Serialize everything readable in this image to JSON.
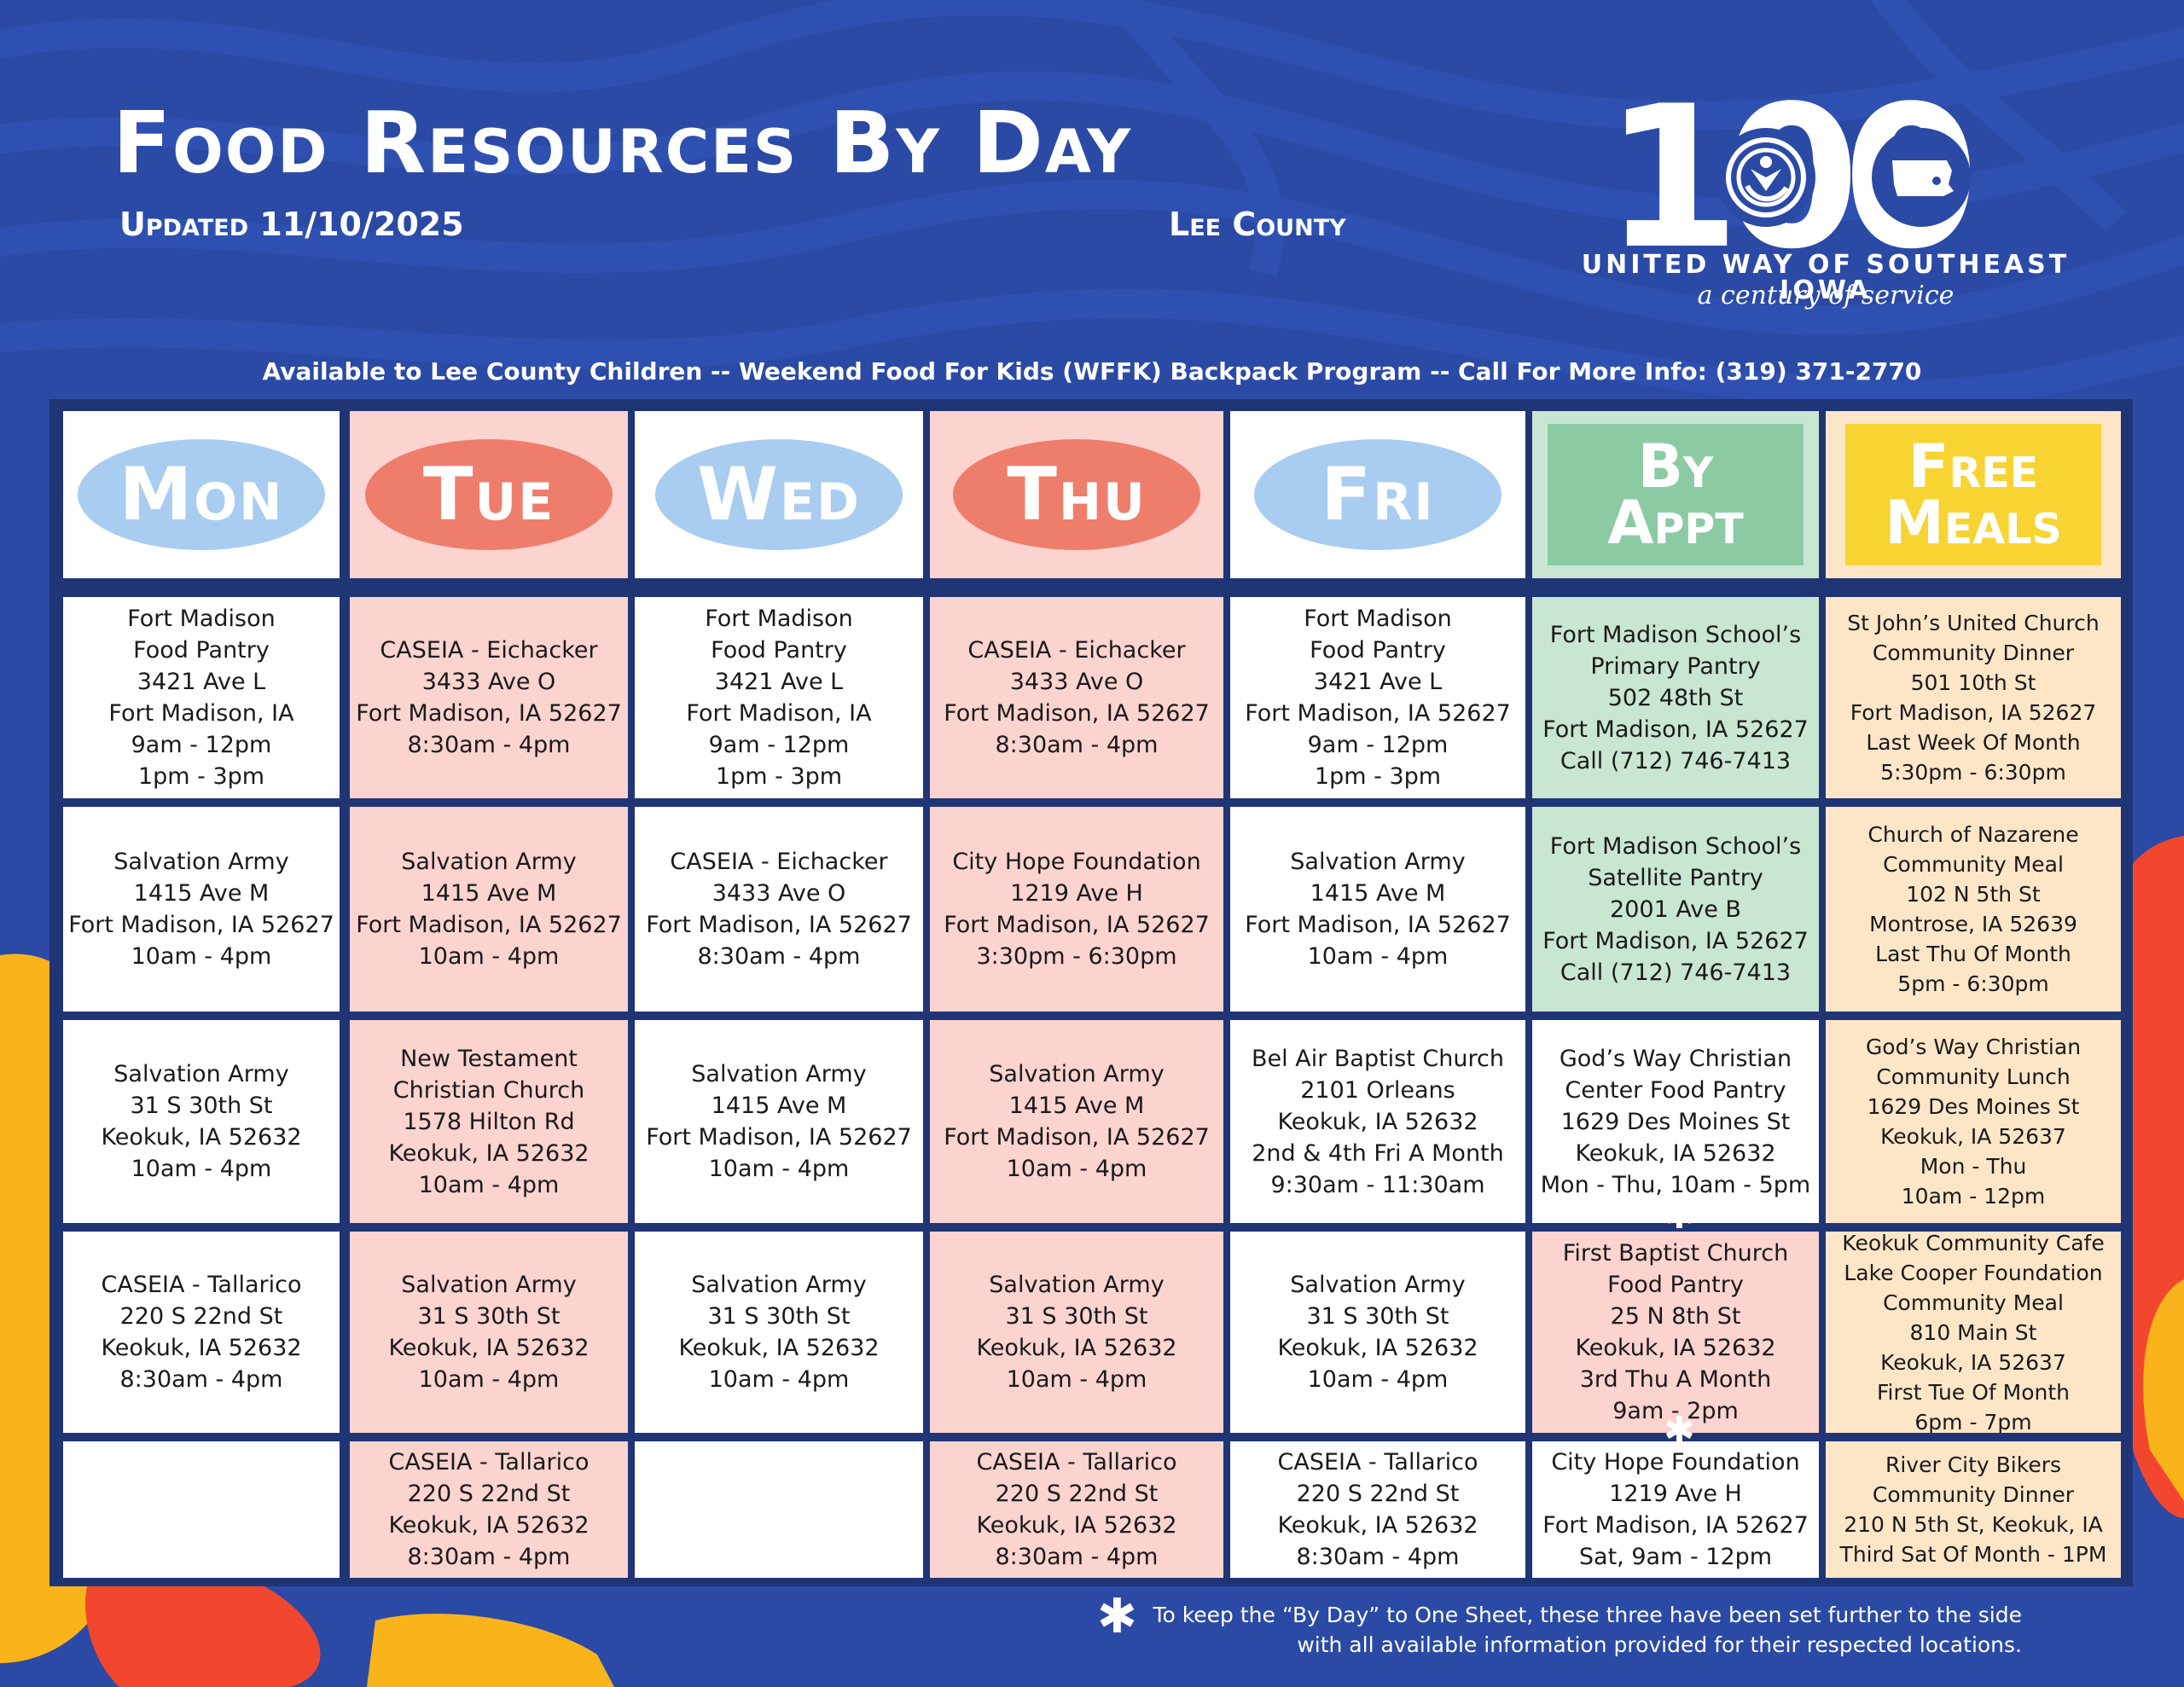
{
  "header": {
    "title": "Food Resources By Day",
    "updated": "Updated 11/10/2025",
    "county": "Lee County"
  },
  "logo": {
    "number": "100",
    "org": "UNITED WAY OF SOUTHEAST IOWA",
    "tagline": "a century of service"
  },
  "banner": "Available to Lee County Children -- Weekend Food For Kids (WFFK) Backpack Program -- Call For More Info: (319) 371-2770",
  "days": [
    {
      "label": "Mon",
      "style": "oval",
      "color": "#a9cdf0"
    },
    {
      "label": "Tue",
      "style": "oval",
      "color": "#ef7d6c"
    },
    {
      "label": "Wed",
      "style": "oval",
      "color": "#a9cdf0"
    },
    {
      "label": "Thu",
      "style": "oval",
      "color": "#ef7d6c"
    },
    {
      "label": "Fri",
      "style": "oval",
      "color": "#a9cdf0"
    },
    {
      "label": "By\nAppt",
      "style": "rect",
      "color": "#8ccaa4"
    },
    {
      "label": "Free\nMeals",
      "style": "rect",
      "color": "#f8d433"
    }
  ],
  "columns": [
    {
      "bg": "#ffffff",
      "cells": [
        [
          "Fort Madison",
          "Food Pantry",
          "3421 Ave L",
          "Fort Madison, IA",
          "9am - 12pm",
          "1pm - 3pm"
        ],
        [
          "Salvation Army",
          "1415 Ave M",
          "Fort Madison, IA 52627",
          "10am - 4pm"
        ],
        [
          "Salvation Army",
          "31 S 30th St",
          "Keokuk, IA 52632",
          "10am - 4pm"
        ],
        [
          "CASEIA - Tallarico",
          "220 S 22nd St",
          "Keokuk, IA 52632",
          "8:30am - 4pm"
        ],
        []
      ]
    },
    {
      "bg": "#fbd3cf",
      "cells": [
        [
          "CASEIA - Eichacker",
          "3433 Ave O",
          "Fort Madison, IA 52627",
          "8:30am - 4pm"
        ],
        [
          "Salvation Army",
          "1415 Ave M",
          "Fort Madison, IA 52627",
          "10am - 4pm"
        ],
        [
          "New Testament",
          "Christian Church",
          "1578 Hilton Rd",
          "Keokuk, IA 52632",
          "10am - 4pm"
        ],
        [
          "Salvation Army",
          "31 S 30th St",
          "Keokuk, IA 52632",
          "10am - 4pm"
        ],
        [
          "CASEIA - Tallarico",
          "220 S 22nd St",
          "Keokuk, IA 52632",
          "8:30am - 4pm"
        ]
      ]
    },
    {
      "bg": "#ffffff",
      "cells": [
        [
          "Fort Madison",
          "Food Pantry",
          "3421 Ave L",
          "Fort Madison, IA",
          "9am - 12pm",
          "1pm - 3pm"
        ],
        [
          "CASEIA - Eichacker",
          "3433 Ave O",
          "Fort Madison, IA 52627",
          "8:30am - 4pm"
        ],
        [
          "Salvation Army",
          "1415 Ave M",
          "Fort Madison, IA 52627",
          "10am - 4pm"
        ],
        [
          "Salvation Army",
          "31 S 30th St",
          "Keokuk, IA 52632",
          "10am - 4pm"
        ],
        []
      ]
    },
    {
      "bg": "#fbd3cf",
      "cells": [
        [
          "CASEIA - Eichacker",
          "3433 Ave O",
          "Fort Madison, IA 52627",
          "8:30am - 4pm"
        ],
        [
          "City Hope Foundation",
          "1219 Ave H",
          "Fort Madison, IA 52627",
          "3:30pm - 6:30pm"
        ],
        [
          "Salvation Army",
          "1415 Ave M",
          "Fort Madison, IA 52627",
          "10am - 4pm"
        ],
        [
          "Salvation Army",
          "31 S 30th St",
          "Keokuk, IA 52632",
          "10am - 4pm"
        ],
        [
          "CASEIA - Tallarico",
          "220 S 22nd St",
          "Keokuk, IA 52632",
          "8:30am - 4pm"
        ]
      ]
    },
    {
      "bg": "#ffffff",
      "cells": [
        [
          "Fort Madison",
          "Food Pantry",
          "3421 Ave L",
          "Fort Madison, IA 52627",
          "9am - 12pm",
          "1pm - 3pm"
        ],
        [
          "Salvation Army",
          "1415 Ave M",
          "Fort Madison, IA 52627",
          "10am - 4pm"
        ],
        [
          "Bel Air Baptist Church",
          "2101 Orleans",
          "Keokuk, IA 52632",
          "2nd & 4th Fri A Month",
          "9:30am - 11:30am"
        ],
        [
          "Salvation Army",
          "31 S 30th St",
          "Keokuk, IA 52632",
          "10am - 4pm"
        ],
        [
          "CASEIA - Tallarico",
          "220 S 22nd St",
          "Keokuk, IA 52632",
          "8:30am - 4pm"
        ]
      ]
    },
    {
      "bg": "#c9e6d3",
      "cells": [
        [
          "Fort Madison School’s",
          "Primary Pantry",
          "502 48th St",
          "Fort Madison, IA 52627",
          "Call (712) 746-7413"
        ],
        [
          "Fort Madison School’s",
          "Satellite Pantry",
          "2001 Ave B",
          "Fort Madison, IA 52627",
          "Call (712) 746-7413"
        ],
        [
          "God’s Way Christian",
          "Center Food Pantry",
          "1629 Des Moines St",
          "Keokuk, IA 52632",
          "Mon - Thu, 10am - 5pm"
        ],
        [
          "First Baptist Church",
          "Food Pantry",
          "25 N 8th St",
          "Keokuk, IA 52632",
          "3rd Thu A Month",
          "9am - 2pm"
        ],
        [
          "City Hope Foundation",
          "1219 Ave H",
          "Fort Madison, IA 52627",
          "Sat, 9am - 12pm"
        ]
      ]
    },
    {
      "bg": "#fde6c8",
      "cells": [
        [
          "St John’s United Church",
          "Community Dinner",
          "501 10th St",
          "Fort Madison, IA 52627",
          "Last Week Of Month",
          "5:30pm - 6:30pm"
        ],
        [
          "Church of Nazarene",
          "Community Meal",
          "102 N 5th St",
          "Montrose, IA 52639",
          "Last Thu Of Month",
          "5pm - 6:30pm"
        ],
        [
          "God’s Way Christian",
          "Community Lunch",
          "1629 Des Moines St",
          "Keokuk, IA 52637",
          "Mon - Thu",
          "10am - 12pm"
        ],
        [
          "Keokuk Community Cafe",
          "Lake Cooper Foundation",
          "Community Meal",
          "810 Main St",
          "Keokuk, IA 52637",
          "First Tue Of Month",
          "6pm - 7pm"
        ],
        [
          "River City Bikers",
          "Community Dinner",
          "210 N 5th St, Keokuk, IA",
          "Third Sat Of Month - 1PM"
        ]
      ]
    }
  ],
  "footnote": {
    "line1": "To keep the “By Day” to One Sheet, these three have been set further to the side",
    "line2": "with all available information provided for their respected locations."
  },
  "colors": {
    "background": "#2b4aa5",
    "grid": "#1f3576",
    "accent_red": "#ef7d6c",
    "accent_blue": "#a9cdf0",
    "accent_yellow": "#f8d433",
    "accent_green": "#8ccaa4"
  }
}
